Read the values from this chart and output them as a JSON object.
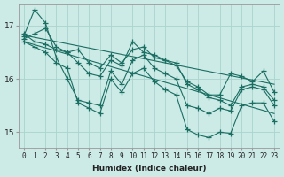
{
  "xlabel": "Humidex (Indice chaleur)",
  "ylabel": "",
  "bg_color": "#cceae6",
  "grid_color": "#aad4ce",
  "line_color": "#1a6e62",
  "x_values": [
    0,
    1,
    2,
    3,
    4,
    5,
    6,
    7,
    8,
    9,
    10,
    11,
    12,
    13,
    14,
    15,
    16,
    17,
    18,
    19,
    20,
    21,
    22,
    23
  ],
  "series1": [
    16.85,
    16.7,
    16.65,
    16.55,
    16.5,
    16.3,
    16.1,
    16.05,
    16.35,
    16.25,
    16.7,
    16.5,
    16.45,
    16.35,
    16.3,
    15.9,
    15.8,
    15.65,
    15.6,
    15.5,
    15.85,
    15.9,
    15.85,
    15.6
  ],
  "series2": [
    16.75,
    16.85,
    16.95,
    16.6,
    16.5,
    16.55,
    16.3,
    16.2,
    16.45,
    16.3,
    16.55,
    16.6,
    16.4,
    16.35,
    16.25,
    15.95,
    15.85,
    15.7,
    15.7,
    16.1,
    16.05,
    15.95,
    16.15,
    15.75
  ],
  "series3_upper": [
    16.8,
    17.3,
    17.05,
    16.4,
    16.0,
    15.6,
    15.55,
    15.5,
    16.15,
    15.9,
    16.35,
    16.45,
    16.2,
    16.1,
    16.0,
    15.5,
    15.45,
    15.35,
    15.45,
    15.4,
    15.8,
    15.85,
    15.8,
    15.5
  ],
  "series3_lower": [
    16.7,
    16.6,
    16.5,
    16.3,
    16.2,
    15.55,
    15.45,
    15.35,
    16.0,
    15.75,
    16.1,
    16.2,
    15.95,
    15.8,
    15.7,
    15.05,
    14.95,
    14.9,
    15.0,
    14.98,
    15.5,
    15.55,
    15.55,
    15.2
  ],
  "trend1_x": [
    0,
    23
  ],
  "trend1_y": [
    16.82,
    15.9
  ],
  "trend2_x": [
    0,
    23
  ],
  "trend2_y": [
    16.7,
    15.35
  ],
  "ylim": [
    14.7,
    17.4
  ],
  "yticks": [
    15,
    16,
    17
  ],
  "xticks": [
    0,
    1,
    2,
    3,
    4,
    5,
    6,
    7,
    8,
    9,
    10,
    11,
    12,
    13,
    14,
    15,
    16,
    17,
    18,
    19,
    20,
    21,
    22,
    23
  ],
  "marker": "+",
  "markersize": 4,
  "markeredgewidth": 0.9,
  "linewidth": 0.8,
  "xlabel_fontsize": 6.5,
  "tick_fontsize": 5.5,
  "ytick_fontsize": 6.5
}
